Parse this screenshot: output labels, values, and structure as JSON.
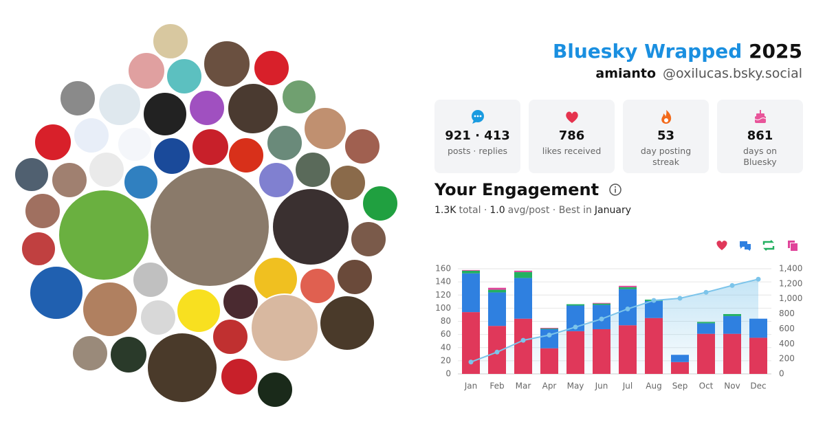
{
  "header": {
    "title": "Bluesky Wrapped",
    "year": "2025",
    "name": "amianto",
    "handle": "@oxilucas.bsky.social"
  },
  "stats": [
    {
      "value": "921 · 413",
      "label": "posts · replies"
    },
    {
      "value": "786",
      "label": "likes received"
    },
    {
      "value": "53",
      "label": "day posting streak"
    },
    {
      "value": "861",
      "label": "days on Bluesky"
    }
  ],
  "engagement": {
    "title": "Your Engagement",
    "summary": [
      "1.3K",
      "total ·",
      "1.0",
      "avg/post · Best in",
      "January"
    ]
  },
  "chart_data": {
    "type": "bar",
    "stacked": true,
    "categories": [
      "Jan",
      "Feb",
      "Mar",
      "Apr",
      "May",
      "Jun",
      "Jul",
      "Aug",
      "Sep",
      "Oct",
      "Nov",
      "Dec"
    ],
    "series": [
      {
        "color": "#e0385a",
        "values": [
          94,
          73,
          84,
          39,
          65,
          68,
          74,
          85,
          18,
          61,
          61,
          55
        ]
      },
      {
        "color": "#2f80e0",
        "values": [
          59,
          51,
          62,
          29,
          39,
          37,
          55,
          26,
          11,
          16,
          27,
          29
        ]
      },
      {
        "color": "#22b060",
        "values": [
          4,
          4,
          9,
          1,
          2,
          2,
          3,
          2,
          0,
          2,
          3,
          0
        ]
      },
      {
        "color": "#e0449a",
        "values": [
          1,
          3,
          2,
          1,
          0,
          1,
          2,
          0,
          0,
          0,
          0,
          0
        ]
      },
      {
        "type": "line",
        "axis": "y2",
        "color": "#7cc4ea",
        "values": [
          158,
          290,
          447,
          517,
          623,
          731,
          865,
          978,
          1007,
          1086,
          1177,
          1261
        ]
      }
    ],
    "ylim": [
      0,
      160
    ],
    "yticks": [
      0,
      20,
      40,
      60,
      80,
      100,
      120,
      140,
      160
    ],
    "y2lim": [
      0,
      1400
    ],
    "y2ticks": [
      0,
      200,
      400,
      600,
      800,
      {
        "value": 1000,
        "label": "1,000"
      },
      {
        "value": 1200,
        "label": "1,200"
      },
      {
        "value": 1400,
        "label": "1,400"
      }
    ],
    "grid": true
  }
}
